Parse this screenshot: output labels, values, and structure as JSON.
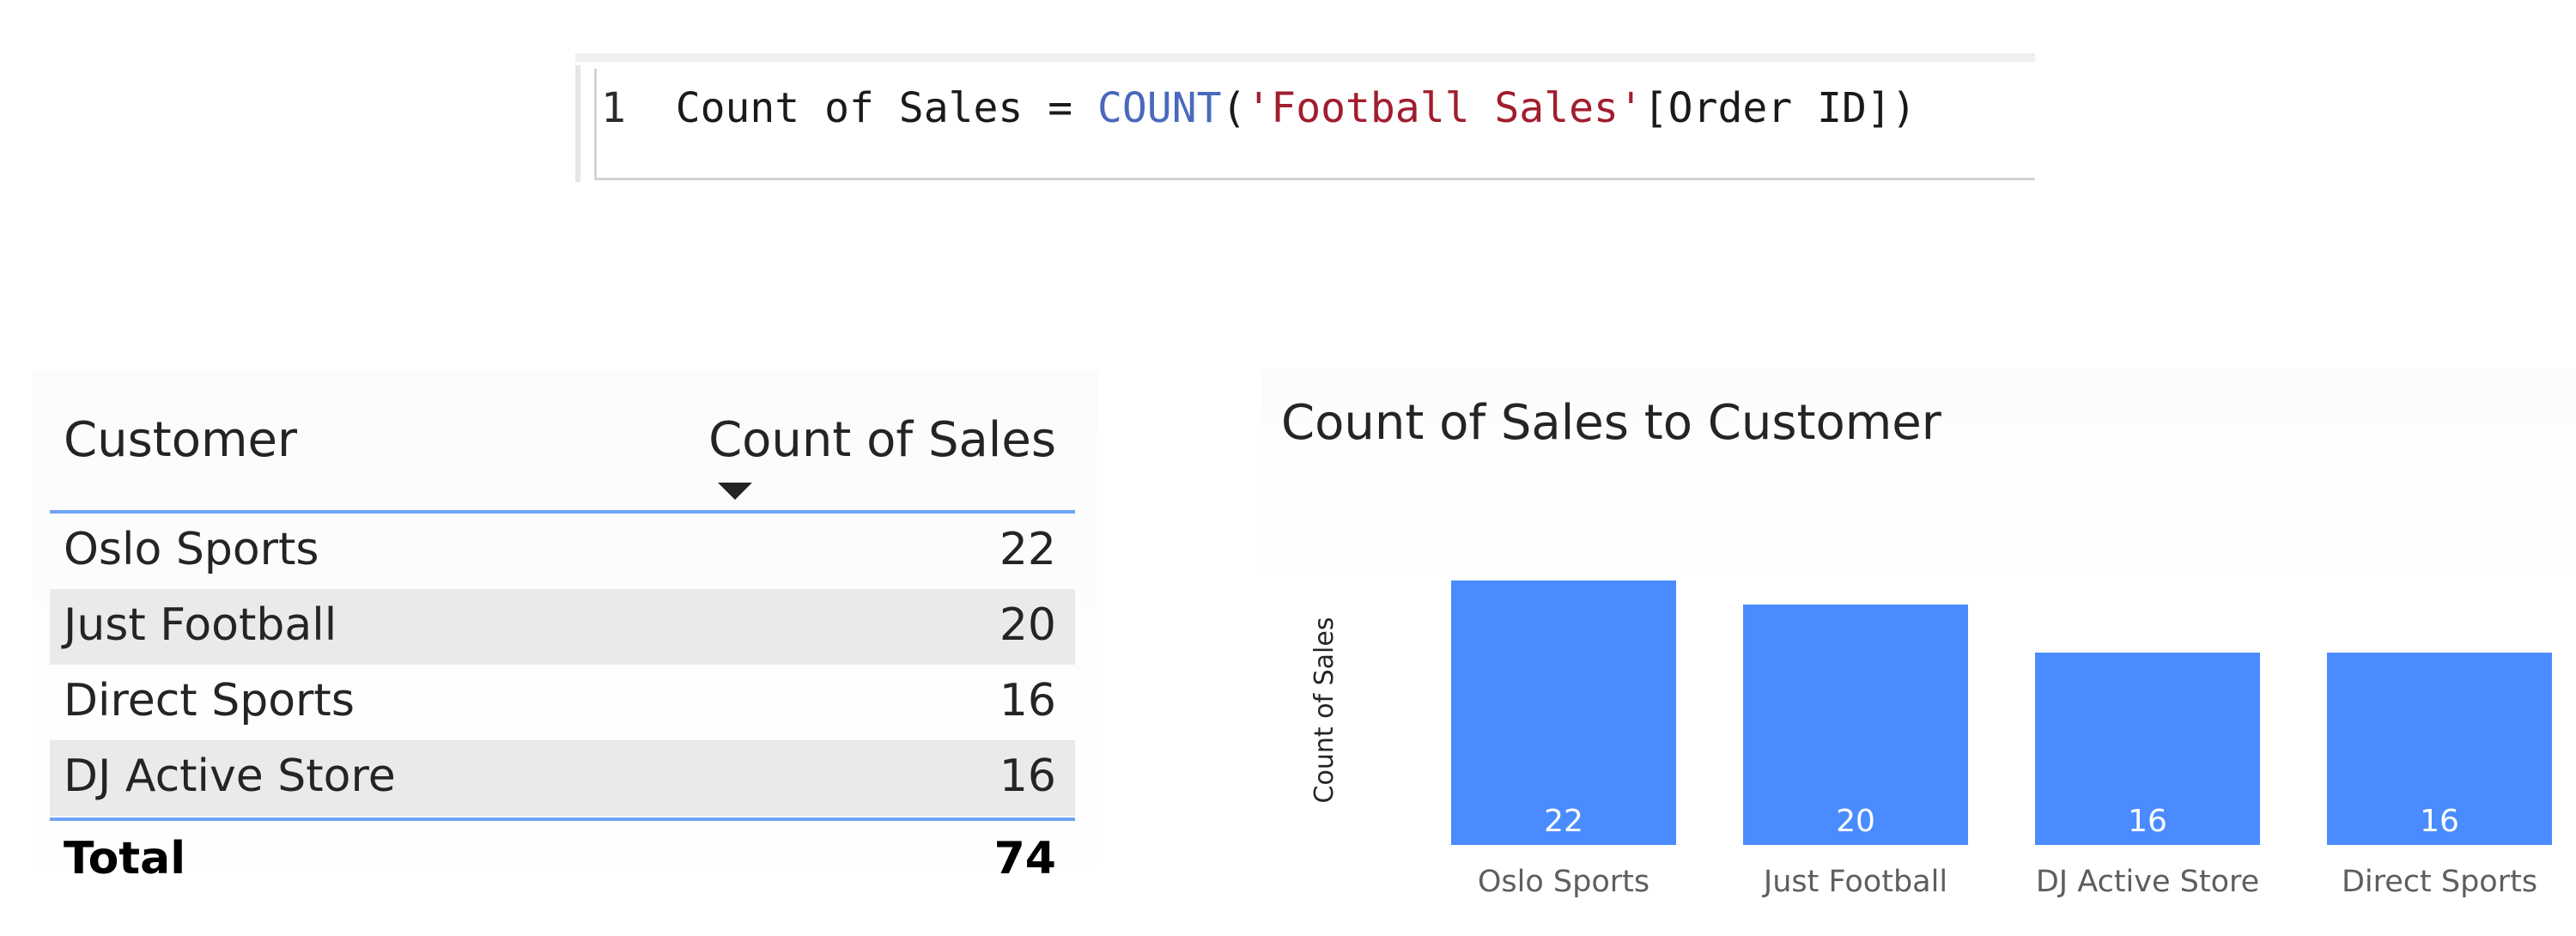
{
  "formula": {
    "line_number": "1",
    "measure_name": "Count of Sales",
    "operator": "=",
    "function_name": "COUNT",
    "open_paren": "(",
    "table_ref": "'Football Sales'",
    "column_ref": "[Order ID]",
    "close_paren": ")"
  },
  "table": {
    "headers": {
      "customer": "Customer",
      "count": "Count of Sales"
    },
    "sort_column": "Count of Sales",
    "sort_direction": "descending",
    "rows": [
      {
        "customer": "Oslo Sports",
        "count": "22"
      },
      {
        "customer": "Just Football",
        "count": "20"
      },
      {
        "customer": "Direct Sports",
        "count": "16"
      },
      {
        "customer": "DJ Active Store",
        "count": "16"
      }
    ],
    "total": {
      "label": "Total",
      "value": "74"
    },
    "colors": {
      "rule": "#6ea3f5",
      "alt_row": "#eaeaea"
    }
  },
  "chart_data": {
    "type": "bar",
    "title": "Count of Sales to Customer",
    "xlabel": "",
    "ylabel": "Count of Sales",
    "categories": [
      "Oslo Sports",
      "Just Football",
      "DJ Active Store",
      "Direct Sports"
    ],
    "values": [
      22,
      20,
      16,
      16
    ],
    "data_labels": [
      "22",
      "20",
      "16",
      "16"
    ],
    "ylim": [
      0,
      22
    ],
    "grid": false,
    "legend": "none",
    "bar_color": "#4a8cff",
    "label_color": "#ffffff"
  }
}
